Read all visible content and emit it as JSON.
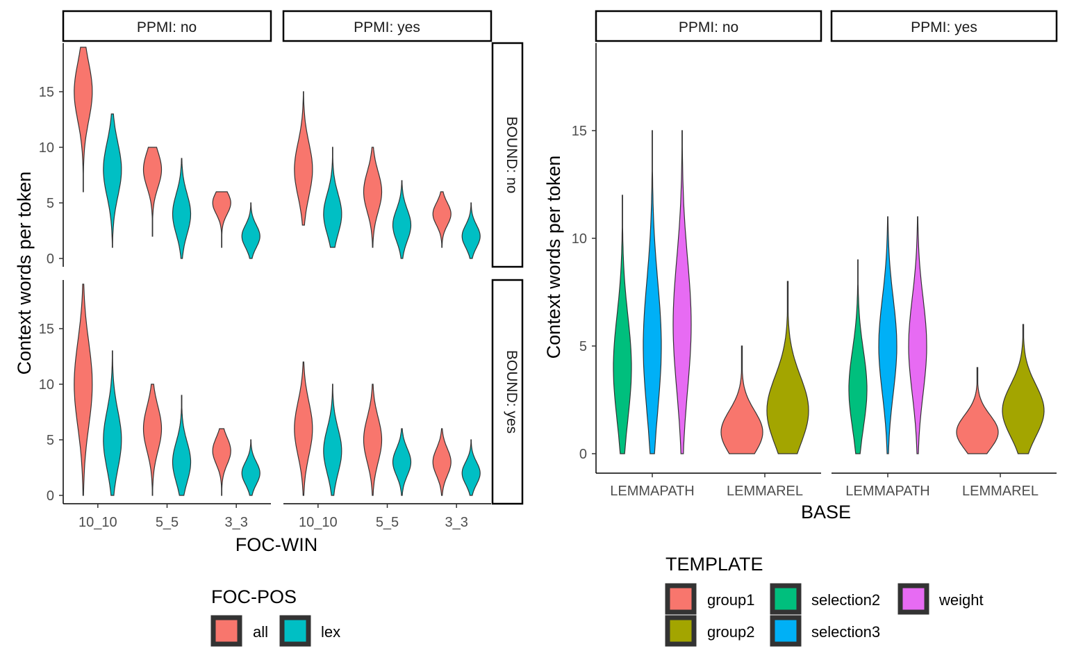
{
  "chart_data": [
    {
      "type": "violin",
      "ylabel": "Context words per token",
      "xlabel": "FOC-WIN",
      "x_categories": [
        "10_10",
        "5_5",
        "3_3"
      ],
      "facet_cols": [
        "PPMI: no",
        "PPMI: yes"
      ],
      "facet_rows": [
        "BOUND: no",
        "BOUND: yes"
      ],
      "yticks": [
        0,
        5,
        10,
        15
      ],
      "ylim": [
        0,
        19
      ],
      "legend": {
        "title": "FOC-POS",
        "position": "bottom",
        "items": [
          {
            "label": "all",
            "color": "#F8766D"
          },
          {
            "label": "lex",
            "color": "#00BFC4"
          }
        ]
      },
      "panels": [
        {
          "row": 0,
          "col": 0,
          "violins": [
            {
              "x": "10_10",
              "group": "all",
              "min": 6,
              "max": 19,
              "peak": 15
            },
            {
              "x": "10_10",
              "group": "lex",
              "min": 1,
              "max": 13,
              "peak": 8
            },
            {
              "x": "5_5",
              "group": "all",
              "min": 2,
              "max": 10,
              "peak": 8
            },
            {
              "x": "5_5",
              "group": "lex",
              "min": 0,
              "max": 9,
              "peak": 4
            },
            {
              "x": "3_3",
              "group": "all",
              "min": 1,
              "max": 6,
              "peak": 5
            },
            {
              "x": "3_3",
              "group": "lex",
              "min": 0,
              "max": 5,
              "peak": 2
            }
          ]
        },
        {
          "row": 0,
          "col": 1,
          "violins": [
            {
              "x": "10_10",
              "group": "all",
              "min": 3,
              "max": 15,
              "peak": 8
            },
            {
              "x": "10_10",
              "group": "lex",
              "min": 1,
              "max": 10,
              "peak": 4
            },
            {
              "x": "5_5",
              "group": "all",
              "min": 1,
              "max": 10,
              "peak": 6
            },
            {
              "x": "5_5",
              "group": "lex",
              "min": 0,
              "max": 7,
              "peak": 3
            },
            {
              "x": "3_3",
              "group": "all",
              "min": 1,
              "max": 6,
              "peak": 4
            },
            {
              "x": "3_3",
              "group": "lex",
              "min": 0,
              "max": 5,
              "peak": 2
            }
          ]
        },
        {
          "row": 1,
          "col": 0,
          "violins": [
            {
              "x": "10_10",
              "group": "all",
              "min": 0,
              "max": 19,
              "peak": 10
            },
            {
              "x": "10_10",
              "group": "lex",
              "min": 0,
              "max": 13,
              "peak": 5
            },
            {
              "x": "5_5",
              "group": "all",
              "min": 0,
              "max": 10,
              "peak": 6
            },
            {
              "x": "5_5",
              "group": "lex",
              "min": 0,
              "max": 9,
              "peak": 3
            },
            {
              "x": "3_3",
              "group": "all",
              "min": 0,
              "max": 6,
              "peak": 4
            },
            {
              "x": "3_3",
              "group": "lex",
              "min": 0,
              "max": 5,
              "peak": 2
            }
          ]
        },
        {
          "row": 1,
          "col": 1,
          "violins": [
            {
              "x": "10_10",
              "group": "all",
              "min": 0,
              "max": 12,
              "peak": 6
            },
            {
              "x": "10_10",
              "group": "lex",
              "min": 0,
              "max": 10,
              "peak": 4
            },
            {
              "x": "5_5",
              "group": "all",
              "min": 0,
              "max": 10,
              "peak": 5
            },
            {
              "x": "5_5",
              "group": "lex",
              "min": 0,
              "max": 6,
              "peak": 3
            },
            {
              "x": "3_3",
              "group": "all",
              "min": 0,
              "max": 6,
              "peak": 3
            },
            {
              "x": "3_3",
              "group": "lex",
              "min": 0,
              "max": 5,
              "peak": 2
            }
          ]
        }
      ]
    },
    {
      "type": "violin",
      "ylabel": "Context words per token",
      "xlabel": "BASE",
      "x_categories": [
        "LEMMAPATH",
        "LEMMAREL"
      ],
      "facet_cols": [
        "PPMI: no",
        "PPMI: yes"
      ],
      "yticks": [
        0,
        5,
        10,
        15
      ],
      "ylim": [
        0,
        19
      ],
      "legend": {
        "title": "TEMPLATE",
        "position": "bottom",
        "items": [
          {
            "label": "group1",
            "color": "#F8766D"
          },
          {
            "label": "group2",
            "color": "#A3A500"
          },
          {
            "label": "selection2",
            "color": "#00BF7D"
          },
          {
            "label": "selection3",
            "color": "#00B0F6"
          },
          {
            "label": "weight",
            "color": "#E76BF3"
          }
        ]
      },
      "panels": [
        {
          "col": 0,
          "violins": [
            {
              "x": "LEMMAPATH",
              "group": "selection2",
              "min": 0,
              "max": 12,
              "peak": 4
            },
            {
              "x": "LEMMAPATH",
              "group": "selection3",
              "min": 0,
              "max": 15,
              "peak": 5
            },
            {
              "x": "LEMMAPATH",
              "group": "weight",
              "min": 0,
              "max": 15,
              "peak": 6
            },
            {
              "x": "LEMMAREL",
              "group": "group1",
              "min": 0,
              "max": 5,
              "peak": 1
            },
            {
              "x": "LEMMAREL",
              "group": "group2",
              "min": 0,
              "max": 8,
              "peak": 2
            }
          ]
        },
        {
          "col": 1,
          "violins": [
            {
              "x": "LEMMAPATH",
              "group": "selection2",
              "min": 0,
              "max": 9,
              "peak": 3
            },
            {
              "x": "LEMMAPATH",
              "group": "selection3",
              "min": 0,
              "max": 11,
              "peak": 5
            },
            {
              "x": "LEMMAPATH",
              "group": "weight",
              "min": 0,
              "max": 11,
              "peak": 5
            },
            {
              "x": "LEMMAREL",
              "group": "group1",
              "min": 0,
              "max": 4,
              "peak": 1
            },
            {
              "x": "LEMMAREL",
              "group": "group2",
              "min": 0,
              "max": 6,
              "peak": 2
            }
          ]
        }
      ]
    }
  ]
}
